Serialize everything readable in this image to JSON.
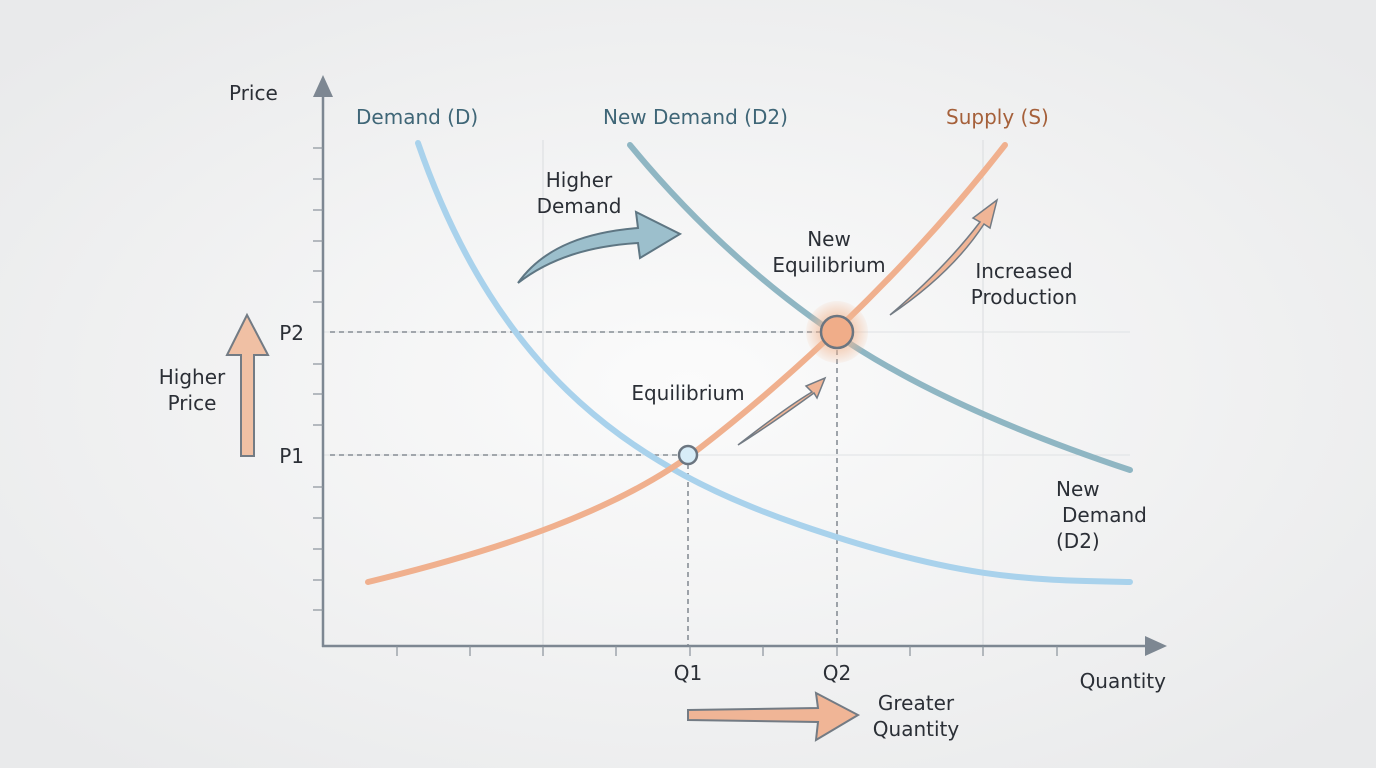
{
  "axes": {
    "y_label": "Price",
    "x_label": "Quantity"
  },
  "curves": {
    "demand": "Demand (D)",
    "new_demand": "New Demand (D2)",
    "supply": "Supply (S)"
  },
  "ticks": {
    "p2": "P2",
    "p1": "P1",
    "q1": "Q1",
    "q2": "Q2"
  },
  "annotations": {
    "higher_demand": [
      "Higher",
      "Demand"
    ],
    "new_equilibrium": [
      "New",
      "Equilibrium"
    ],
    "increased_production": [
      "Increased",
      "Production"
    ],
    "equilibrium": "Equilibrium",
    "higher_price": [
      "Higher",
      "Price"
    ],
    "new_demand_end": [
      "New",
      "Demand",
      "(D2)"
    ],
    "greater_quantity": [
      "Greater",
      "Quantity"
    ]
  }
}
